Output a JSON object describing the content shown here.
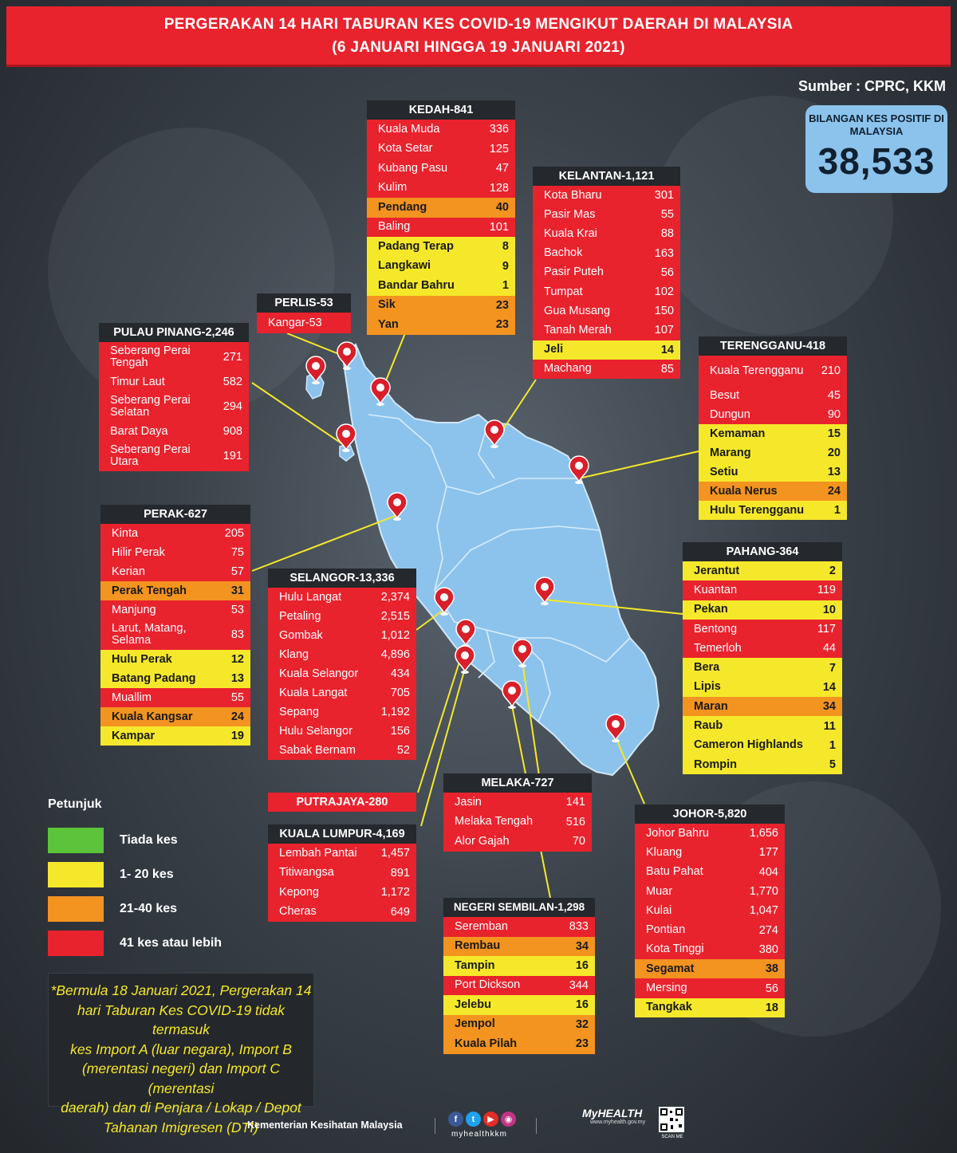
{
  "header": {
    "line1": "PERGERAKAN 14 HARI TABURAN KES COVID-19 MENGIKUT DAERAH DI MALAYSIA",
    "line2": "(6 JANUARI HINGGA 19 JANUARI 2021)"
  },
  "source": "Sumber : CPRC, KKM",
  "total": {
    "label": "BILANGAN KES POSITIF DI MALAYSIA",
    "value": "38,533"
  },
  "colors": {
    "red": "#e8232d",
    "orange": "#f39320",
    "yellow": "#f5e82a",
    "green": "#5cc43a",
    "map": "#8cc3ec"
  },
  "states": {
    "kedah": {
      "title": "KEDAH-841",
      "rows": [
        {
          "name": "Kuala Muda",
          "value": "336",
          "level": "red"
        },
        {
          "name": "Kota Setar",
          "value": "125",
          "level": "red"
        },
        {
          "name": "Kubang Pasu",
          "value": "47",
          "level": "red"
        },
        {
          "name": "Kulim",
          "value": "128",
          "level": "red"
        },
        {
          "name": "Pendang",
          "value": "40",
          "level": "orange"
        },
        {
          "name": "Baling",
          "value": "101",
          "level": "red"
        },
        {
          "name": "Padang Terap",
          "value": "8",
          "level": "yellow"
        },
        {
          "name": "Langkawi",
          "value": "9",
          "level": "yellow"
        },
        {
          "name": "Bandar Bahru",
          "value": "1",
          "level": "yellow"
        },
        {
          "name": "Sik",
          "value": "23",
          "level": "orange"
        },
        {
          "name": "Yan",
          "value": "23",
          "level": "orange"
        }
      ]
    },
    "kelantan": {
      "title": "KELANTAN-1,121",
      "rows": [
        {
          "name": "Kota Bharu",
          "value": "301",
          "level": "red"
        },
        {
          "name": "Pasir Mas",
          "value": "55",
          "level": "red"
        },
        {
          "name": "Kuala Krai",
          "value": "88",
          "level": "red"
        },
        {
          "name": "Bachok",
          "value": "163",
          "level": "red"
        },
        {
          "name": "Pasir Puteh",
          "value": "56",
          "level": "red"
        },
        {
          "name": "Tumpat",
          "value": "102",
          "level": "red"
        },
        {
          "name": "Gua Musang",
          "value": "150",
          "level": "red"
        },
        {
          "name": "Tanah Merah",
          "value": "107",
          "level": "red"
        },
        {
          "name": "Jeli",
          "value": "14",
          "level": "yellow"
        },
        {
          "name": "Machang",
          "value": "85",
          "level": "red"
        }
      ]
    },
    "perlis": {
      "title": "PERLIS-53",
      "rows": [
        {
          "name": "Kangar-53",
          "value": "",
          "level": "red"
        }
      ]
    },
    "pulau_pinang": {
      "title": "PULAU PINANG-2,246",
      "rows": [
        {
          "name": "Seberang Perai Tengah",
          "value": "271",
          "level": "red"
        },
        {
          "name": "Timur Laut",
          "value": "582",
          "level": "red"
        },
        {
          "name": "Seberang Perai Selatan",
          "value": "294",
          "level": "red"
        },
        {
          "name": "Barat Daya",
          "value": "908",
          "level": "red"
        },
        {
          "name": "Seberang Perai Utara",
          "value": "191",
          "level": "red"
        }
      ]
    },
    "terengganu": {
      "title": "TERENGGANU-418",
      "rows": [
        {
          "name": "Kuala Terengganu",
          "value": "210",
          "level": "red"
        },
        {
          "name": "Besut",
          "value": "45",
          "level": "red"
        },
        {
          "name": "Dungun",
          "value": "90",
          "level": "red"
        },
        {
          "name": "Kemaman",
          "value": "15",
          "level": "yellow"
        },
        {
          "name": "Marang",
          "value": "20",
          "level": "yellow"
        },
        {
          "name": "Setiu",
          "value": "13",
          "level": "yellow"
        },
        {
          "name": "Kuala Nerus",
          "value": "24",
          "level": "orange"
        },
        {
          "name": "Hulu Terengganu",
          "value": "1",
          "level": "yellow"
        }
      ]
    },
    "perak": {
      "title": "PERAK-627",
      "rows": [
        {
          "name": "Kinta",
          "value": "205",
          "level": "red"
        },
        {
          "name": "Hilir Perak",
          "value": "75",
          "level": "red"
        },
        {
          "name": "Kerian",
          "value": "57",
          "level": "red"
        },
        {
          "name": "Perak Tengah",
          "value": "31",
          "level": "orange"
        },
        {
          "name": "Manjung",
          "value": "53",
          "level": "red"
        },
        {
          "name": "Larut, Matang, Selama",
          "value": "83",
          "level": "red"
        },
        {
          "name": "Hulu Perak",
          "value": "12",
          "level": "yellow"
        },
        {
          "name": "Batang Padang",
          "value": "13",
          "level": "yellow"
        },
        {
          "name": "Muallim",
          "value": "55",
          "level": "red"
        },
        {
          "name": "Kuala Kangsar",
          "value": "24",
          "level": "orange"
        },
        {
          "name": "Kampar",
          "value": "19",
          "level": "yellow"
        }
      ]
    },
    "selangor": {
      "title": "SELANGOR-13,336",
      "rows": [
        {
          "name": "Hulu Langat",
          "value": "2,374",
          "level": "red"
        },
        {
          "name": "Petaling",
          "value": "2,515",
          "level": "red"
        },
        {
          "name": "Gombak",
          "value": "1,012",
          "level": "red"
        },
        {
          "name": "Klang",
          "value": "4,896",
          "level": "red"
        },
        {
          "name": "Kuala Selangor",
          "value": "434",
          "level": "red"
        },
        {
          "name": "Kuala Langat",
          "value": "705",
          "level": "red"
        },
        {
          "name": "Sepang",
          "value": "1,192",
          "level": "red"
        },
        {
          "name": "Hulu Selangor",
          "value": "156",
          "level": "red"
        },
        {
          "name": "Sabak Bernam",
          "value": "52",
          "level": "red"
        }
      ]
    },
    "pahang": {
      "title": "PAHANG-364",
      "rows": [
        {
          "name": "Jerantut",
          "value": "2",
          "level": "yellow"
        },
        {
          "name": "Kuantan",
          "value": "119",
          "level": "red"
        },
        {
          "name": "Pekan",
          "value": "10",
          "level": "yellow"
        },
        {
          "name": "Bentong",
          "value": "117",
          "level": "red"
        },
        {
          "name": "Temerloh",
          "value": "44",
          "level": "red"
        },
        {
          "name": "Bera",
          "value": "7",
          "level": "yellow"
        },
        {
          "name": "Lipis",
          "value": "14",
          "level": "yellow"
        },
        {
          "name": "Maran",
          "value": "34",
          "level": "orange"
        },
        {
          "name": "Raub",
          "value": "11",
          "level": "yellow"
        },
        {
          "name": "Cameron Highlands",
          "value": "1",
          "level": "yellow"
        },
        {
          "name": "Rompin",
          "value": "5",
          "level": "yellow"
        }
      ]
    },
    "putrajaya": {
      "title": "PUTRAJAYA-280"
    },
    "kuala_lumpur": {
      "title": "KUALA LUMPUR-4,169",
      "rows": [
        {
          "name": "Lembah Pantai",
          "value": "1,457",
          "level": "red"
        },
        {
          "name": "Titiwangsa",
          "value": "891",
          "level": "red"
        },
        {
          "name": "Kepong",
          "value": "1,172",
          "level": "red"
        },
        {
          "name": "Cheras",
          "value": "649",
          "level": "red"
        }
      ]
    },
    "melaka": {
      "title": "MELAKA-727",
      "rows": [
        {
          "name": "Jasin",
          "value": "141",
          "level": "red"
        },
        {
          "name": "Melaka Tengah",
          "value": "516",
          "level": "red"
        },
        {
          "name": "Alor Gajah",
          "value": "70",
          "level": "red"
        }
      ]
    },
    "johor": {
      "title": "JOHOR-5,820",
      "rows": [
        {
          "name": "Johor Bahru",
          "value": "1,656",
          "level": "red"
        },
        {
          "name": "Kluang",
          "value": "177",
          "level": "red"
        },
        {
          "name": "Batu Pahat",
          "value": "404",
          "level": "red"
        },
        {
          "name": "Muar",
          "value": "1,770",
          "level": "red"
        },
        {
          "name": "Kulai",
          "value": "1,047",
          "level": "red"
        },
        {
          "name": "Pontian",
          "value": "274",
          "level": "red"
        },
        {
          "name": "Kota Tinggi",
          "value": "380",
          "level": "red"
        },
        {
          "name": "Segamat",
          "value": "38",
          "level": "orange"
        },
        {
          "name": "Mersing",
          "value": "56",
          "level": "red"
        },
        {
          "name": "Tangkak",
          "value": "18",
          "level": "yellow"
        }
      ]
    },
    "negeri_sembilan": {
      "title": "NEGERI SEMBILAN-1,298",
      "rows": [
        {
          "name": "Seremban",
          "value": "833",
          "level": "red"
        },
        {
          "name": "Rembau",
          "value": "34",
          "level": "orange"
        },
        {
          "name": "Tampin",
          "value": "16",
          "level": "yellow"
        },
        {
          "name": "Port Dickson",
          "value": "344",
          "level": "red"
        },
        {
          "name": "Jelebu",
          "value": "16",
          "level": "yellow"
        },
        {
          "name": "Jempol",
          "value": "32",
          "level": "orange"
        },
        {
          "name": "Kuala Pilah",
          "value": "23",
          "level": "orange"
        }
      ]
    }
  },
  "legend": {
    "title": "Petunjuk",
    "items": [
      {
        "label": "Tiada kes",
        "color": "#5cc43a"
      },
      {
        "label": "1- 20 kes",
        "color": "#f5e82a"
      },
      {
        "label": "21-40 kes",
        "color": "#f39320"
      },
      {
        "label": "41 kes atau lebih",
        "color": "#e8232d"
      }
    ]
  },
  "note": {
    "lines": [
      "*Bermula 18 Januari 2021, Pergerakan 14",
      "hari Taburan Kes COVID-19 tidak termasuk",
      "kes Import A (luar negara), Import B",
      "(merentasi negeri) dan Import C (merentasi",
      "daerah) dan di Penjara / Lokap / Depot",
      "Tahanan Imigresen (DTI)"
    ]
  },
  "footer": {
    "ministry": "Kementerian Kesihatan Malaysia",
    "handle": "myhealthkkm",
    "brand": "MyHEALTH",
    "url": "www.myhealth.gov.my",
    "scan": "SCAN ME"
  }
}
